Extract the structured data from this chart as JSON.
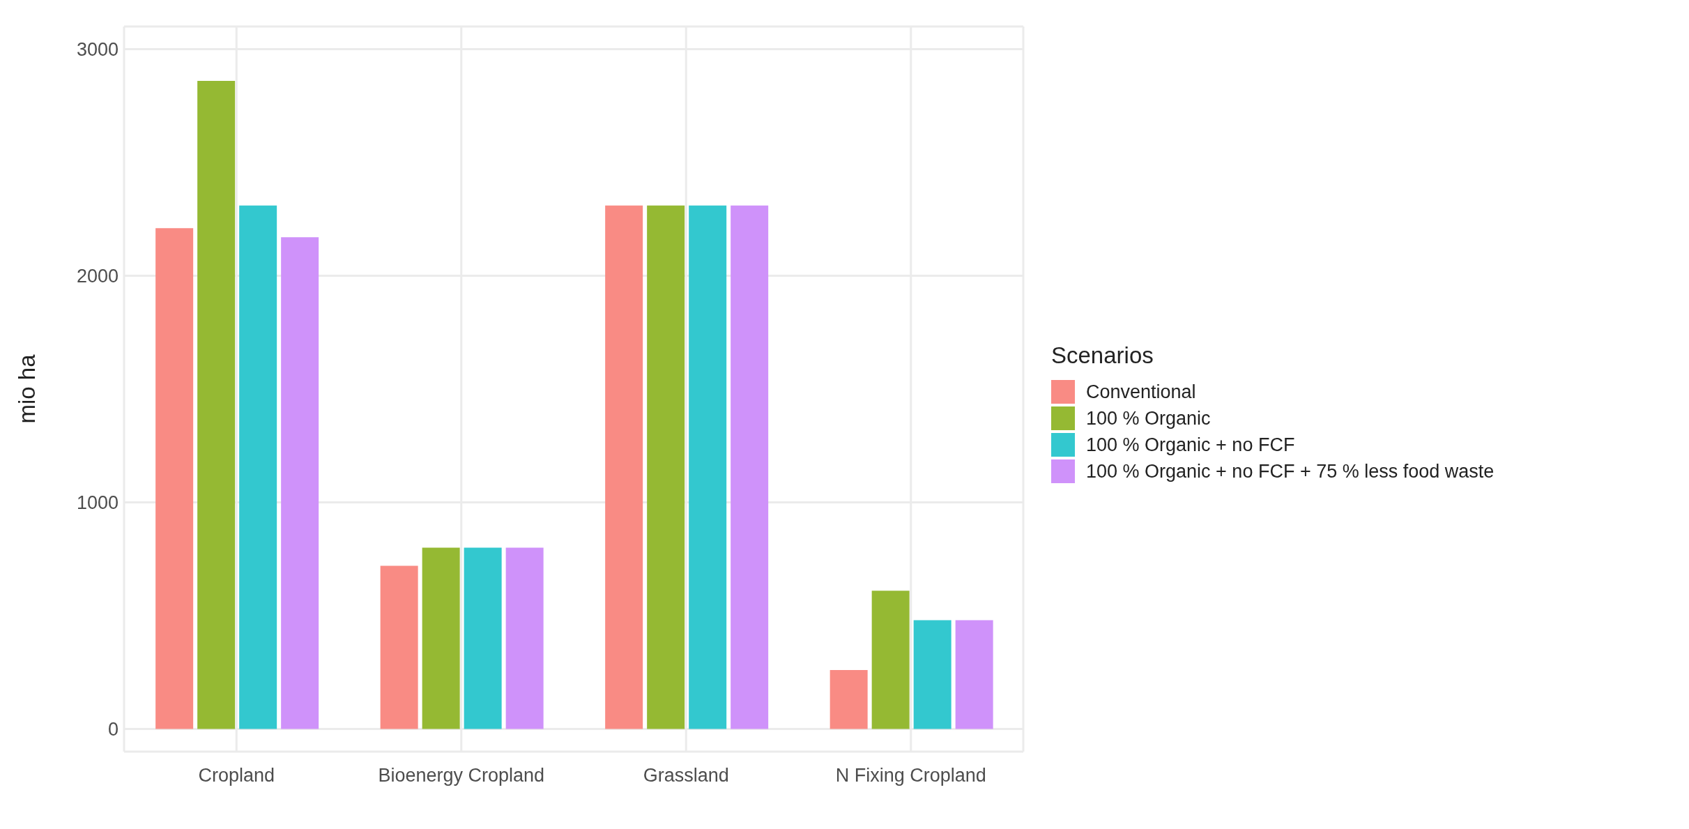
{
  "chart_data": {
    "type": "bar",
    "ylabel": "mio ha",
    "legend_title": "Scenarios",
    "categories": [
      "Cropland",
      "Bioenergy Cropland",
      "Grassland",
      "N Fixing Cropland"
    ],
    "series": [
      {
        "name": "Conventional",
        "color": "#f98b84",
        "values": [
          2210,
          720,
          2310,
          260
        ]
      },
      {
        "name": "100 % Organic",
        "color": "#95b933",
        "values": [
          2860,
          800,
          2310,
          610
        ]
      },
      {
        "name": "100 % Organic + no FCF",
        "color": "#33c8cf",
        "values": [
          2310,
          800,
          2310,
          480
        ]
      },
      {
        "name": "100 % Organic + no FCF + 75 % less food waste",
        "color": "#cf92fa",
        "values": [
          2170,
          800,
          2310,
          480
        ]
      }
    ],
    "ylim": [
      -100,
      3100
    ],
    "yticks": [
      0,
      1000,
      2000,
      3000
    ],
    "grid": true,
    "legend": "right"
  }
}
